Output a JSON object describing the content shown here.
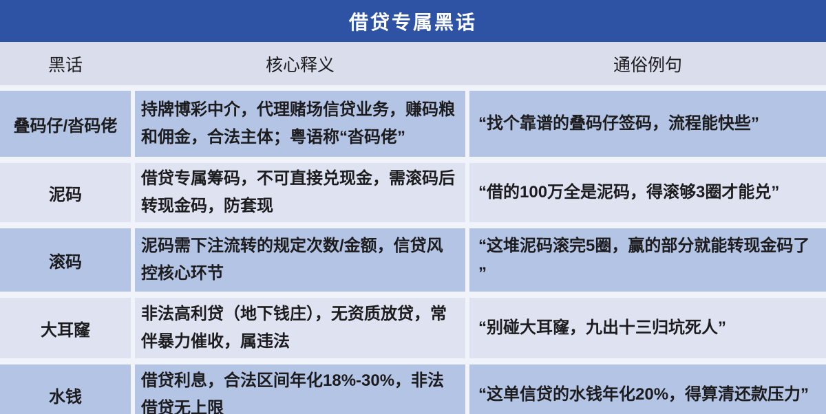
{
  "title": "借贷专属黑话",
  "colors": {
    "title_bar": "#2E53A4",
    "header_bg": "#DADEEC",
    "row_blue": "#B4C4E5",
    "row_light": "#DEE2F1",
    "page_bg": "#F0F3F9",
    "text": "#1C1C1E",
    "title_text": "#FFFFFF"
  },
  "table": {
    "columns": [
      "黑话",
      "核心释义",
      "通俗例句"
    ],
    "rows": [
      {
        "term": "叠码仔/沓码佬",
        "definition": "持牌博彩中介，代理赌场信贷业务，赚码粮\n和佣金，合法主体；粤语称“沓码佬”",
        "example": "“找个靠谱的叠码仔签码，流程能快些”"
      },
      {
        "term": "泥码",
        "definition": "借贷专属筹码，不可直接兑现金，需滚码后\n转现金码，防套现",
        "example": "“借的100万全是泥码，得滚够3圈才能兑”"
      },
      {
        "term": "滚码",
        "definition": "泥码需下注流转的规定次数/金额，信贷风\n控核心环节",
        "example": "“这堆泥码滚完5圈，赢的部分就能转现金码了\n”"
      },
      {
        "term": "大耳窿",
        "definition": "非法高利贷（地下钱庄），无资质放贷，常\n伴暴力催收，属违法",
        "example": "“别碰大耳窿，九出十三归坑死人”"
      },
      {
        "term": "水钱",
        "definition": "借贷利息，合法区间年化18%-30%，非法\n借贷无上限",
        "example": "“这单信贷的水钱年化20%，得算清还款压力”"
      }
    ]
  }
}
